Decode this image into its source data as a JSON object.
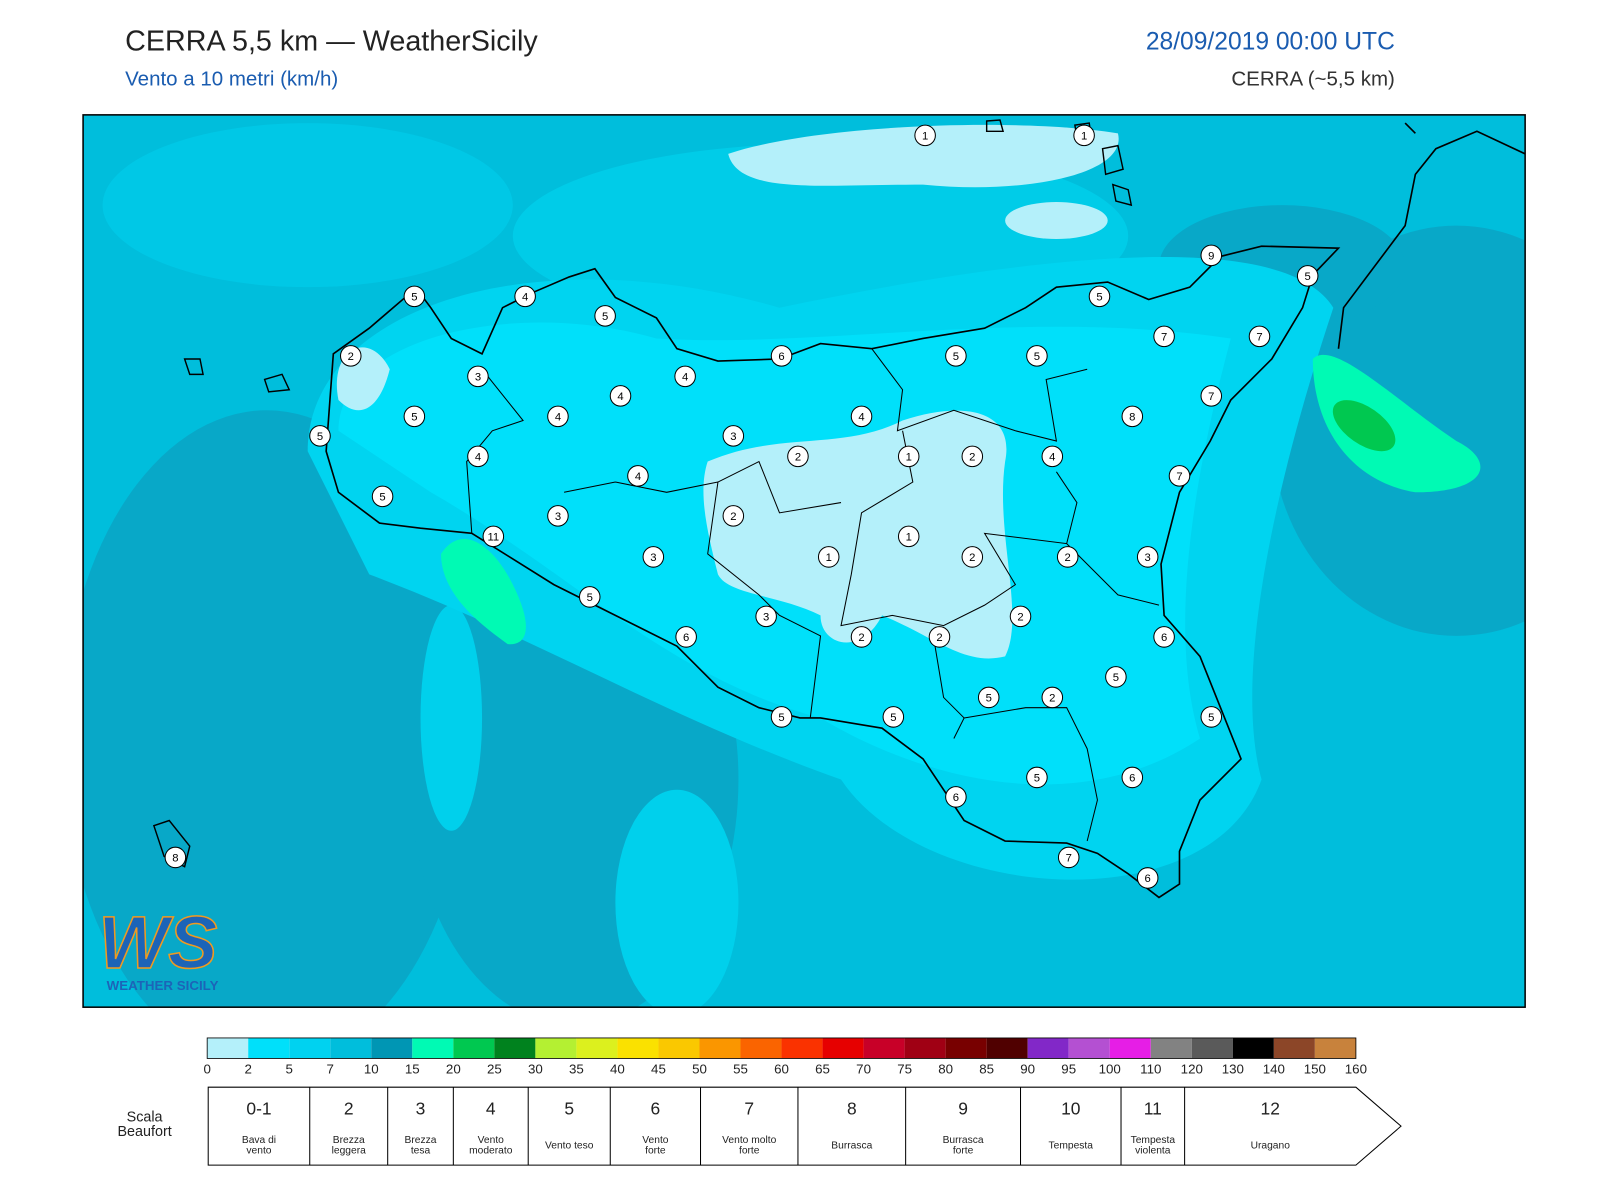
{
  "header": {
    "title": "CERRA 5,5 km — WeatherSicily",
    "subtitle": "Vento a 10 metri (km/h)",
    "datetime": "28/09/2019 00:00 UTC",
    "model": "CERRA (~5,5 km)"
  },
  "map": {
    "stations": [
      "1",
      "1",
      "9",
      "5",
      "5",
      "4",
      "5",
      "5",
      "7",
      "7",
      "2",
      "6",
      "5",
      "5",
      "3",
      "4",
      "4",
      "7",
      "5",
      "4",
      "4",
      "8",
      "5",
      "3",
      "4",
      "2",
      "1",
      "2",
      "4",
      "4",
      "7",
      "5",
      "3",
      "2",
      "11",
      "1",
      "3",
      "1",
      "2",
      "2",
      "3",
      "5",
      "2",
      "3",
      "6",
      "2",
      "2",
      "6",
      "5",
      "5",
      "2",
      "5",
      "5",
      "5",
      "5",
      "6",
      "6",
      "8",
      "7",
      "6"
    ]
  },
  "logo": {
    "mark": "WS",
    "name": "WEATHER SICILY"
  },
  "colorbar": {
    "ticks": [
      0,
      2,
      5,
      7,
      10,
      15,
      20,
      25,
      30,
      35,
      40,
      45,
      50,
      55,
      60,
      65,
      70,
      75,
      80,
      85,
      90,
      95,
      100,
      110,
      120,
      130,
      140,
      150,
      160
    ],
    "colors": [
      "#b4f0fa",
      "#00e0fa",
      "#00d2f0",
      "#00bedc",
      "#0096b4",
      "#00fab4",
      "#00c850",
      "#00821e",
      "#b4f032",
      "#dcf01e",
      "#fae100",
      "#fac800",
      "#fa9600",
      "#fa6400",
      "#fa3200",
      "#e60000",
      "#c80028",
      "#a00014",
      "#780000",
      "#500000",
      "#8228c8",
      "#b450d2",
      "#e61ee6",
      "#828282",
      "#5a5a5a",
      "#000000",
      "#8c4628",
      "#c8823c"
    ]
  },
  "beaufort": {
    "label": [
      "Scala",
      "Beaufort"
    ],
    "levels": [
      {
        "force": "0-1",
        "description": [
          "Bava di",
          "vento"
        ]
      },
      {
        "force": "2",
        "description": [
          "Brezza",
          "leggera"
        ]
      },
      {
        "force": "3",
        "description": [
          "Brezza",
          "tesa"
        ]
      },
      {
        "force": "4",
        "description": [
          "Vento",
          "moderato"
        ]
      },
      {
        "force": "5",
        "description": [
          "Vento teso"
        ]
      },
      {
        "force": "6",
        "description": [
          "Vento",
          "forte"
        ]
      },
      {
        "force": "7",
        "description": [
          "Vento molto",
          "forte"
        ]
      },
      {
        "force": "8",
        "description": [
          "Burrasca"
        ]
      },
      {
        "force": "9",
        "description": [
          "Burrasca",
          "forte"
        ]
      },
      {
        "force": "10",
        "description": [
          "Tempesta"
        ]
      },
      {
        "force": "11",
        "description": [
          "Tempesta",
          "violenta"
        ]
      },
      {
        "force": "12",
        "description": [
          "Uragano"
        ]
      }
    ]
  }
}
